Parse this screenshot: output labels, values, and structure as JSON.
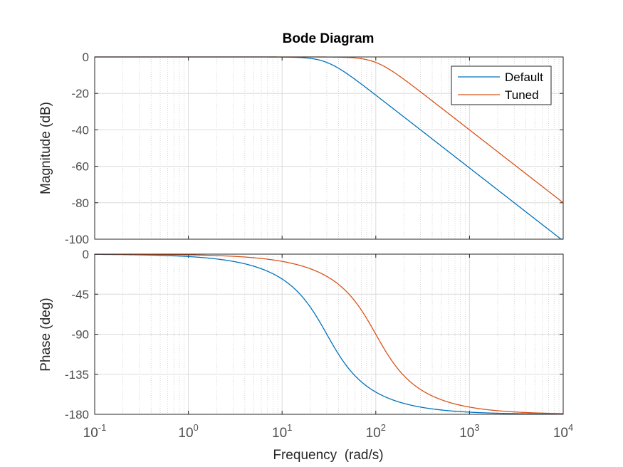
{
  "chart_data": {
    "type": "line",
    "title": "Bode Diagram",
    "xlabel": "Frequency  (rad/s)",
    "xscale": "log",
    "xlim": [
      0.1,
      10000
    ],
    "x_ticks": [
      {
        "base": "10",
        "exp": "-1",
        "value": 0.1
      },
      {
        "base": "10",
        "exp": "0",
        "value": 1
      },
      {
        "base": "10",
        "exp": "1",
        "value": 10
      },
      {
        "base": "10",
        "exp": "2",
        "value": 100
      },
      {
        "base": "10",
        "exp": "3",
        "value": 1000
      },
      {
        "base": "10",
        "exp": "4",
        "value": 10000
      }
    ],
    "grid": true,
    "legend": {
      "position": "top-right",
      "entries": [
        "Default",
        "Tuned"
      ]
    },
    "colors": {
      "Default": "#0072BD",
      "Tuned": "#D95319",
      "grid": "#dcdcdc",
      "axis_text": "#4d4d4d"
    },
    "subplots": [
      {
        "id": "magnitude",
        "ylabel": "Magnitude (dB)",
        "ylim": [
          -100,
          0
        ],
        "yticks": [
          0,
          -20,
          -40,
          -60,
          -80,
          -100
        ],
        "series": [
          {
            "name": "Default",
            "model": {
              "type": "second-order-lowpass",
              "wn": 30,
              "zeta": 0.707
            }
          },
          {
            "name": "Tuned",
            "model": {
              "type": "second-order-lowpass",
              "wn": 100,
              "zeta": 0.707
            }
          }
        ]
      },
      {
        "id": "phase",
        "ylabel": "Phase (deg)",
        "ylim": [
          -180,
          0
        ],
        "yticks": [
          0,
          -45,
          -90,
          -135,
          -180
        ],
        "series": [
          {
            "name": "Default",
            "model": {
              "type": "second-order-lowpass",
              "wn": 30,
              "zeta": 0.707
            }
          },
          {
            "name": "Tuned",
            "model": {
              "type": "second-order-lowpass",
              "wn": 100,
              "zeta": 0.707
            }
          }
        ]
      }
    ]
  }
}
